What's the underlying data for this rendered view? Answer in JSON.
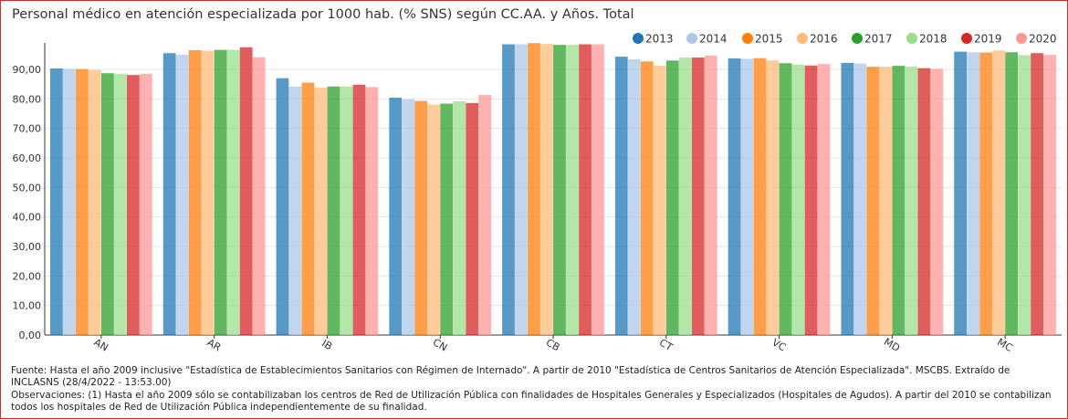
{
  "chart_data": {
    "type": "bar",
    "title": "Personal médico en atención especializada por 1000 hab. (% SNS) según CC.AA. y Años. Total",
    "xlabel": "",
    "ylabel": "",
    "ylim": [
      0,
      100
    ],
    "yticks": [
      "0,00",
      "10,00",
      "20,00",
      "30,00",
      "40,00",
      "50,00",
      "60,00",
      "70,00",
      "80,00",
      "90,00"
    ],
    "legend_position": "top-right",
    "categories": [
      "AN",
      "AR",
      "IB",
      "CN",
      "CB",
      "CT",
      "VC",
      "MD",
      "MC"
    ],
    "series": [
      {
        "name": "2013",
        "color": "#1f77b4",
        "values": [
          90.3,
          95.5,
          87.0,
          80.4,
          98.5,
          94.3,
          93.7,
          92.2,
          96.0
        ]
      },
      {
        "name": "2014",
        "color": "#aec7e8",
        "values": [
          90.2,
          95.0,
          84.2,
          79.8,
          98.5,
          93.4,
          93.6,
          92.0,
          95.8
        ]
      },
      {
        "name": "2015",
        "color": "#ff7f0e",
        "values": [
          90.1,
          96.5,
          85.5,
          79.3,
          98.9,
          92.7,
          93.8,
          90.9,
          95.7
        ]
      },
      {
        "name": "2016",
        "color": "#ffbb78",
        "values": [
          89.8,
          96.3,
          83.8,
          78.1,
          98.6,
          91.2,
          93.0,
          90.9,
          96.4
        ]
      },
      {
        "name": "2017",
        "color": "#2ca02c",
        "values": [
          88.7,
          96.6,
          84.2,
          78.4,
          98.3,
          93.0,
          92.1,
          91.2,
          95.8
        ]
      },
      {
        "name": "2018",
        "color": "#98df8a",
        "values": [
          88.5,
          96.6,
          84.2,
          79.2,
          98.3,
          94.0,
          91.6,
          90.9,
          94.8
        ]
      },
      {
        "name": "2019",
        "color": "#d62728",
        "values": [
          88.1,
          97.5,
          84.8,
          78.6,
          98.5,
          94.0,
          91.3,
          90.4,
          95.5
        ]
      },
      {
        "name": "2020",
        "color": "#ff9896",
        "values": [
          88.5,
          94.1,
          84.0,
          81.3,
          98.5,
          94.7,
          91.8,
          90.2,
          94.9
        ]
      }
    ]
  },
  "footer": {
    "source": "Fuente: Hasta el año 2009 inclusive \"Estadística de Establecimientos Sanitarios con Régimen de Internado\". A partir de 2010 \"Estadística de Centros Sanitarios de Atención Especializada\". MSCBS. Extraído de INCLASNS (28/4/2022 - 13:53.00)",
    "notes": "Observaciones: (1) Hasta el año 2009 sólo se contabilizaban los centros de Red de Utilización Pública con finalidades de Hospitales Generales y Especializados (Hospitales de Agudos). A partir del 2010 se contabilizan todos los hospitales de Red de Utilización Pública independientemente de su finalidad."
  }
}
